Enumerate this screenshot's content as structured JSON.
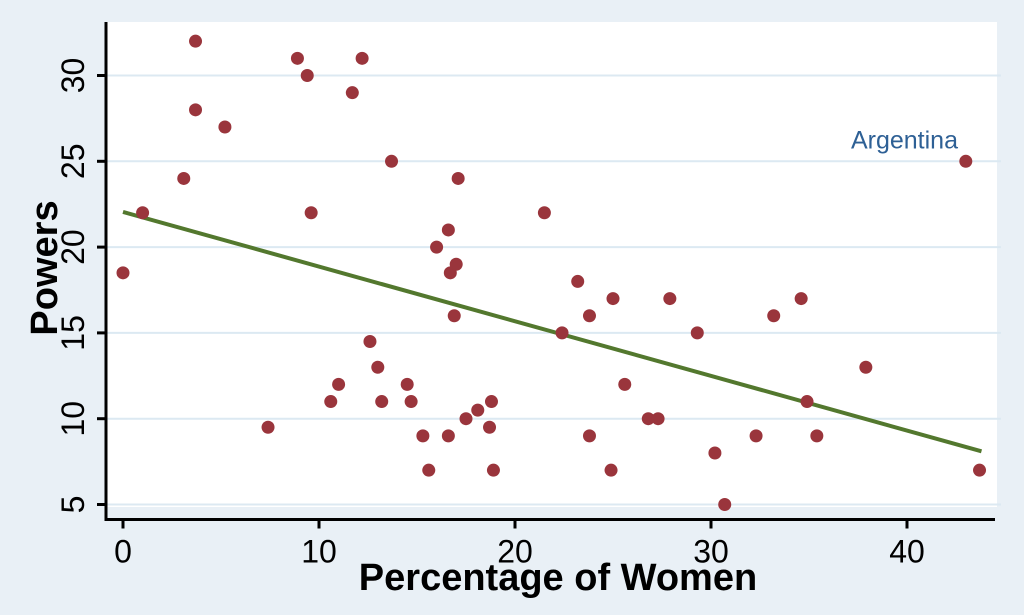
{
  "figure": {
    "background_color": "#e9f0f6",
    "plot_background_color": "#ffffff",
    "gridline_color": "#dce9f2",
    "axis_color": "#000000",
    "tick_label_color": "#000000"
  },
  "chart_data": {
    "type": "scatter",
    "title": "",
    "xlabel": "Percentage of Women",
    "ylabel": "Powers",
    "x_ticks": [
      0,
      10,
      20,
      30,
      40
    ],
    "y_ticks": [
      5,
      10,
      15,
      20,
      25,
      30
    ],
    "xlim": [
      -0.9,
      44.7
    ],
    "ylim": [
      3.6,
      33.1
    ],
    "grid": "horizontal-only",
    "legend_position": "none",
    "marker_color": "#9a353c",
    "fit_line_color": "#53782e",
    "points": [
      [
        0,
        18.5
      ],
      [
        1,
        22
      ],
      [
        3.1,
        24
      ],
      [
        3.7,
        28
      ],
      [
        3.7,
        32
      ],
      [
        5.2,
        27
      ],
      [
        7.4,
        9.5
      ],
      [
        8.9,
        31
      ],
      [
        9.4,
        30
      ],
      [
        9.6,
        22
      ],
      [
        10.6,
        11
      ],
      [
        11,
        12
      ],
      [
        11.7,
        29
      ],
      [
        12.2,
        31
      ],
      [
        12.6,
        14.5
      ],
      [
        13,
        13
      ],
      [
        13.2,
        11
      ],
      [
        13.7,
        25
      ],
      [
        14.5,
        12
      ],
      [
        14.7,
        11
      ],
      [
        15.3,
        9
      ],
      [
        15.6,
        7
      ],
      [
        16,
        20
      ],
      [
        16.6,
        21
      ],
      [
        16.6,
        9
      ],
      [
        16.7,
        18.5
      ],
      [
        16.9,
        16
      ],
      [
        17,
        19
      ],
      [
        17.1,
        24
      ],
      [
        17.5,
        10
      ],
      [
        18.1,
        10.5
      ],
      [
        18.7,
        9.5
      ],
      [
        18.8,
        11
      ],
      [
        18.9,
        7
      ],
      [
        21.5,
        22
      ],
      [
        22.4,
        15
      ],
      [
        23.2,
        18
      ],
      [
        23.8,
        16
      ],
      [
        23.8,
        9
      ],
      [
        24.9,
        7
      ],
      [
        25,
        17
      ],
      [
        25.6,
        12
      ],
      [
        26.8,
        10
      ],
      [
        27.3,
        10
      ],
      [
        27.9,
        17
      ],
      [
        29.3,
        15
      ],
      [
        30.2,
        8
      ],
      [
        30.7,
        5
      ],
      [
        32.3,
        9
      ],
      [
        33.2,
        16
      ],
      [
        34.6,
        17
      ],
      [
        34.9,
        11
      ],
      [
        35.4,
        9
      ],
      [
        37.9,
        13
      ],
      [
        43,
        25
      ],
      [
        43.7,
        7
      ]
    ],
    "fit_line": {
      "x_start": 0,
      "y_start": 22.05,
      "x_end": 43.8,
      "y_end": 8.1
    },
    "annotation": {
      "text": "Argentina",
      "color": "#2e6095",
      "x": 43,
      "y": 25
    }
  }
}
